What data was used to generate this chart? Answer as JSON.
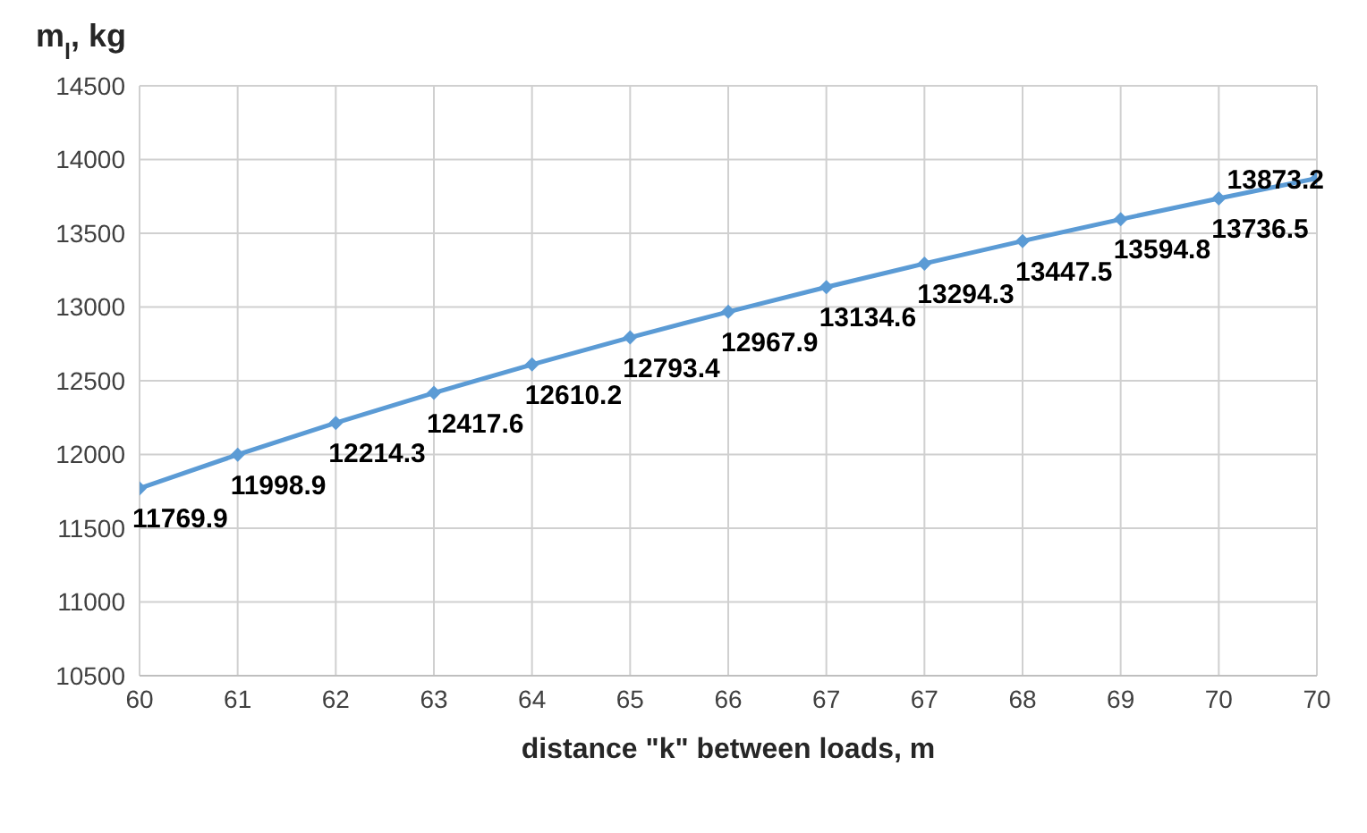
{
  "chart_data": {
    "type": "line",
    "ylabel": "m$_{l}$, kg",
    "xlabel": "distance \"k\" between loads, m",
    "categories": [
      "60",
      "61",
      "62",
      "63",
      "64",
      "65",
      "66",
      "67",
      "67",
      "68",
      "69",
      "70",
      "70"
    ],
    "series": [
      {
        "color": "#5b9bd5",
        "values": [
          11769.9,
          11998.9,
          12214.3,
          12417.6,
          12610.2,
          12793.4,
          12967.9,
          13134.6,
          13294.3,
          13447.5,
          13594.8,
          13736.5,
          13873.2
        ]
      }
    ],
    "ylim": [
      10500,
      14500
    ],
    "yticks": [
      10500,
      11000,
      11500,
      12000,
      12500,
      13000,
      13500,
      14000,
      14500
    ],
    "grid": true,
    "marker": "diamond",
    "line_style": "solid",
    "data_labels": true
  }
}
